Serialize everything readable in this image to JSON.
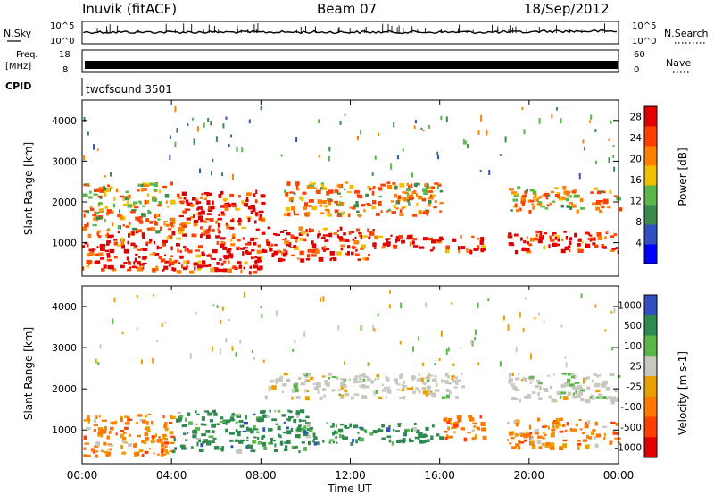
{
  "header": {
    "station": "Inuvik (fitACF)",
    "beam": "Beam 07",
    "date": "18/Sep/2012"
  },
  "strip_labels": {
    "nsky": "N.Sky",
    "nsearch": "N.Search",
    "freq_line1": "Freq.",
    "freq_line2": "[MHz]",
    "nave": "Nave",
    "cpid": "CPID",
    "cpid_value": "twofsound 3501",
    "n_top_left": "10^5",
    "n_bottom_left": "10^0",
    "n_top_right": "10^5",
    "n_bottom_right": "10^0",
    "f_top": "18",
    "f_bottom": "8",
    "nave_top": "60",
    "nave_bottom": "0"
  },
  "colors": {
    "power": [
      "#0000ff",
      "#3050c0",
      "#3a8a50",
      "#5ab84a",
      "#f0c000",
      "#ff8000",
      "#ff4000",
      "#e00000"
    ],
    "velocity": [
      "#3050c0",
      "#2e8a4e",
      "#5ab84a",
      "#c8c8c0",
      "#e8a000",
      "#ff7800",
      "#ff4000",
      "#e00000"
    ]
  },
  "chart_data": [
    {
      "type": "heatmap",
      "name": "Power",
      "xlabel": "",
      "ylabel": "Slant Range [km]",
      "ylim": [
        180,
        4500
      ],
      "xlim": [
        0,
        24
      ],
      "yticks": [
        1000,
        2000,
        3000,
        4000
      ],
      "colorbar": {
        "label": "Power [dB]",
        "ticks": [
          "4",
          "8",
          "12",
          "16",
          "20",
          "24",
          "28"
        ],
        "range": [
          0,
          30
        ]
      },
      "bands": [
        {
          "t0": 0,
          "t1": 4,
          "r0": 350,
          "r1": 1300,
          "level": "high"
        },
        {
          "t0": 0,
          "t1": 4,
          "r0": 1300,
          "r1": 2500,
          "level": "mid"
        },
        {
          "t0": 4,
          "t1": 8,
          "r0": 300,
          "r1": 2300,
          "level": "high"
        },
        {
          "t0": 8,
          "t1": 13,
          "r0": 600,
          "r1": 1400,
          "level": "high"
        },
        {
          "t0": 9,
          "t1": 16,
          "r0": 1700,
          "r1": 2500,
          "level": "mid"
        },
        {
          "t0": 13,
          "t1": 18,
          "r0": 800,
          "r1": 1200,
          "level": "high"
        },
        {
          "t0": 19,
          "t1": 24,
          "r0": 800,
          "r1": 1300,
          "level": "high"
        },
        {
          "t0": 19,
          "t1": 24,
          "r0": 1800,
          "r1": 2400,
          "level": "mid"
        }
      ]
    },
    {
      "type": "heatmap",
      "name": "Velocity",
      "xlabel": "Time UT",
      "ylabel": "Slant Range [km]",
      "ylim": [
        180,
        4500
      ],
      "xlim": [
        0,
        24
      ],
      "yticks": [
        1000,
        2000,
        3000,
        4000
      ],
      "xticks": [
        "00:00",
        "04:00",
        "08:00",
        "12:00",
        "16:00",
        "20:00",
        "00:00"
      ],
      "colorbar": {
        "label": "Velocity [m s-1]",
        "ticks": [
          "1000",
          "500",
          "100",
          "25",
          "-25",
          "-100",
          "-500",
          "-1000"
        ]
      },
      "bands": [
        {
          "t0": 0,
          "t1": 4,
          "r0": 400,
          "r1": 1400,
          "class": "negative"
        },
        {
          "t0": 4,
          "t1": 10,
          "r0": 500,
          "r1": 1500,
          "class": "positive"
        },
        {
          "t0": 8,
          "t1": 17,
          "r0": 1800,
          "r1": 2400,
          "class": "near-zero"
        },
        {
          "t0": 10,
          "t1": 16,
          "r0": 700,
          "r1": 1200,
          "class": "positive"
        },
        {
          "t0": 16,
          "t1": 18,
          "r0": 800,
          "r1": 1400,
          "class": "negative"
        },
        {
          "t0": 19,
          "t1": 24,
          "r0": 600,
          "r1": 1300,
          "class": "negative"
        },
        {
          "t0": 19,
          "t1": 24,
          "r0": 1700,
          "r1": 2400,
          "class": "near-zero"
        }
      ]
    }
  ]
}
